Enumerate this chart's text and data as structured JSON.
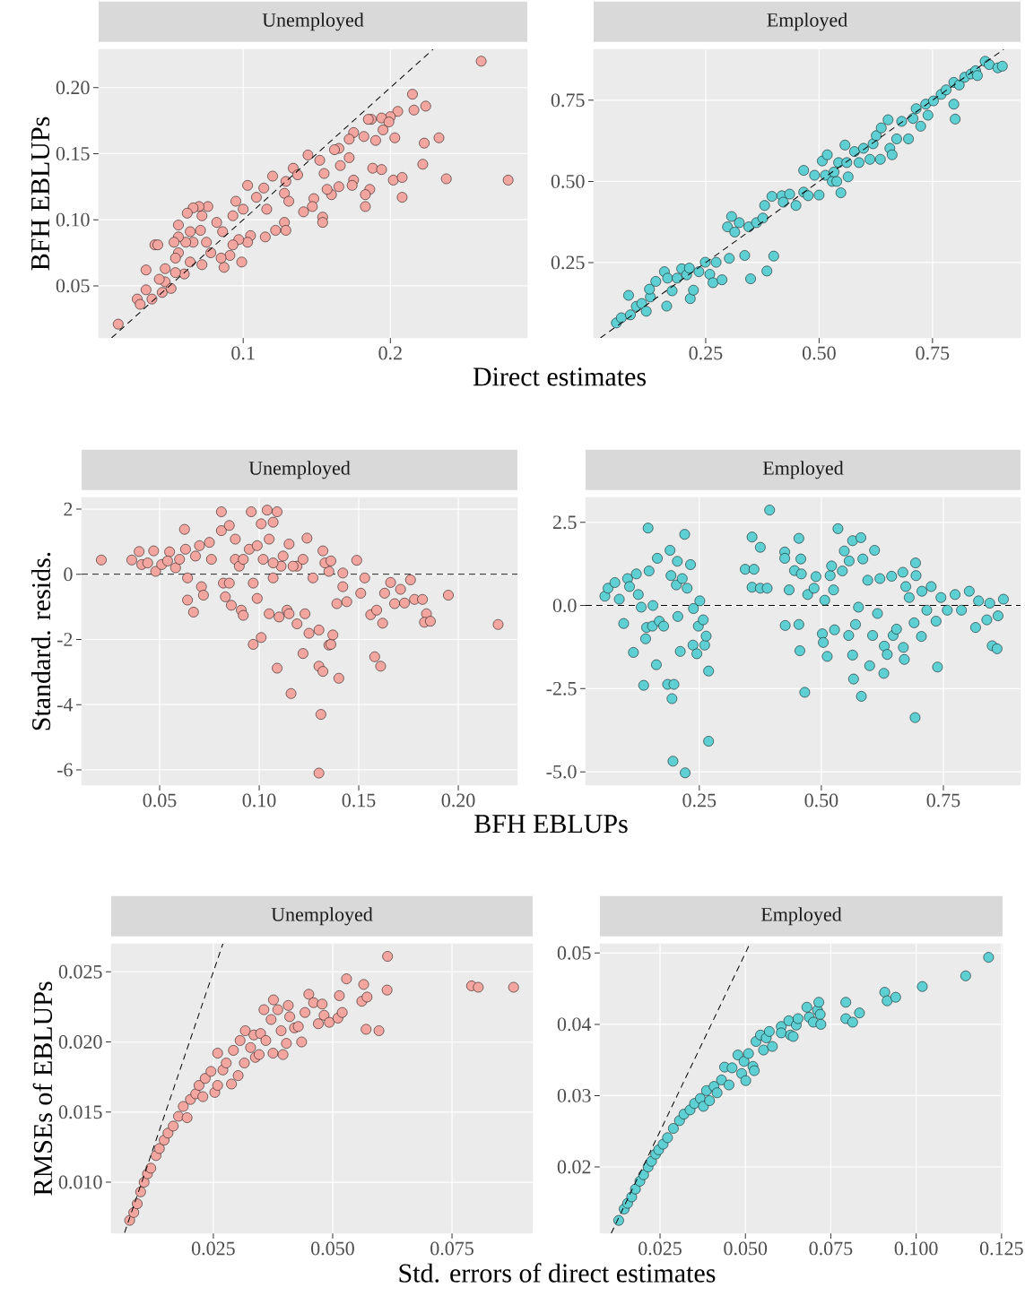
{
  "chart_data": [
    {
      "type": "scatter",
      "title": "Unemployed",
      "ylabel": "BFH EBLUPs",
      "xlabel": "Direct estimates",
      "xlim": [
        0.0018,
        0.293
      ],
      "ylim": [
        0.0106,
        0.229
      ],
      "xticks": [
        0.1,
        0.2
      ],
      "yticks": [
        0.05,
        {
          "value": 0.1,
          "label": "0.10"
        },
        0.15,
        {
          "value": 0.2,
          "label": "0.20"
        }
      ],
      "grid": true,
      "marker": "circle",
      "series": [
        {
          "color": "#f3a59f",
          "x": [
            0.0151,
            0.2617,
            0.28,
            0.215,
            0.224,
            0.216,
            0.233,
            0.223,
            0.222,
            0.238,
            0.205,
            0.2,
            0.194,
            0.187,
            0.185,
            0.199,
            0.195,
            0.203,
            0.19,
            0.182,
            0.175,
            0.172,
            0.172,
            0.165,
            0.162,
            0.166,
            0.188,
            0.194,
            0.202,
            0.208,
            0.208,
            0.186,
            0.183,
            0.183,
            0.175,
            0.174,
            0.165,
            0.16,
            0.157,
            0.155,
            0.152,
            0.144,
            0.154,
            0.154,
            0.148,
            0.147,
            0.141,
            0.134,
            0.137,
            0.129,
            0.128,
            0.131,
            0.128,
            0.129,
            0.122,
            0.115,
            0.12,
            0.114,
            0.109,
            0.116,
            0.103,
            0.1,
            0.095,
            0.093,
            0.105,
            0.103,
            0.097,
            0.099,
            0.093,
            0.091,
            0.087,
            0.085,
            0.086,
            0.082,
            0.076,
            0.07,
            0.066,
            0.062,
            0.072,
            0.071,
            0.064,
            0.066,
            0.061,
            0.075,
            0.078,
            0.072,
            0.064,
            0.056,
            0.056,
            0.053,
            0.056,
            0.054,
            0.06,
            0.054,
            0.047,
            0.047,
            0.043,
            0.045,
            0.04,
            0.042,
            0.034,
            0.034,
            0.038,
            0.028,
            0.03,
            0.051
          ],
          "values": [
            0.021,
            0.22,
            0.13,
            0.195,
            0.186,
            0.183,
            0.162,
            0.158,
            0.142,
            0.131,
            0.182,
            0.178,
            0.177,
            0.176,
            0.176,
            0.174,
            0.168,
            0.162,
            0.16,
            0.163,
            0.166,
            0.161,
            0.147,
            0.154,
            0.153,
            0.141,
            0.139,
            0.138,
            0.13,
            0.132,
            0.117,
            0.123,
            0.119,
            0.11,
            0.13,
            0.126,
            0.125,
            0.119,
            0.123,
            0.135,
            0.145,
            0.149,
            0.102,
            0.098,
            0.116,
            0.11,
            0.106,
            0.139,
            0.134,
            0.129,
            0.12,
            0.114,
            0.098,
            0.092,
            0.092,
            0.087,
            0.133,
            0.124,
            0.117,
            0.108,
            0.126,
            0.108,
            0.114,
            0.103,
            0.088,
            0.083,
            0.085,
            0.068,
            0.081,
            0.073,
            0.064,
            0.071,
            0.091,
            0.098,
            0.11,
            0.11,
            0.109,
            0.105,
            0.103,
            0.092,
            0.091,
            0.083,
            0.083,
            0.083,
            0.075,
            0.066,
            0.068,
            0.096,
            0.087,
            0.083,
            0.075,
            0.071,
            0.059,
            0.06,
            0.063,
            0.053,
            0.055,
            0.045,
            0.081,
            0.081,
            0.062,
            0.047,
            0.04,
            0.04,
            0.036,
            0.048
          ]
        },
        {
          "type": "line",
          "color": "#000000",
          "line_style": "dashed",
          "marker": "none",
          "x": [
            0.0106,
            0.229
          ],
          "values": [
            0.0106,
            0.229
          ]
        }
      ]
    },
    {
      "type": "scatter",
      "title": "Employed",
      "xlim": [
        0.003,
        0.944
      ],
      "ylim": [
        0.018,
        0.907
      ],
      "xticks": [
        0.25,
        {
          "value": 0.5,
          "label": "0.50"
        },
        0.75
      ],
      "yticks": [
        0.25,
        {
          "value": 0.5,
          "label": "0.50"
        },
        0.75
      ],
      "grid": true,
      "marker": "circle",
      "series": [
        {
          "color": "#5ecfd2",
          "x": [
            0.053,
            0.064,
            0.08,
            0.084,
            0.097,
            0.109,
            0.119,
            0.128,
            0.126,
            0.14,
            0.159,
            0.164,
            0.166,
            0.176,
            0.187,
            0.197,
            0.208,
            0.216,
            0.223,
            0.214,
            0.235,
            0.249,
            0.259,
            0.266,
            0.273,
            0.286,
            0.302,
            0.298,
            0.307,
            0.314,
            0.324,
            0.336,
            0.345,
            0.349,
            0.362,
            0.376,
            0.38,
            0.385,
            0.396,
            0.4,
            0.418,
            0.421,
            0.435,
            0.449,
            0.466,
            0.466,
            0.476,
            0.49,
            0.5,
            0.507,
            0.514,
            0.518,
            0.529,
            0.539,
            0.548,
            0.533,
            0.543,
            0.557,
            0.561,
            0.564,
            0.578,
            0.588,
            0.598,
            0.612,
            0.619,
            0.626,
            0.635,
            0.637,
            0.652,
            0.656,
            0.661,
            0.671,
            0.682,
            0.697,
            0.707,
            0.714,
            0.724,
            0.735,
            0.74,
            0.752,
            0.769,
            0.78,
            0.797,
            0.8,
            0.797,
            0.809,
            0.821,
            0.835,
            0.845,
            0.849,
            0.866,
            0.875,
            0.894,
            0.904
          ],
          "values": [
            0.064,
            0.08,
            0.149,
            0.089,
            0.115,
            0.124,
            0.1,
            0.144,
            0.168,
            0.192,
            0.222,
            0.116,
            0.202,
            0.163,
            0.202,
            0.231,
            0.212,
            0.139,
            0.165,
            0.233,
            0.222,
            0.251,
            0.214,
            0.188,
            0.251,
            0.197,
            0.263,
            0.36,
            0.392,
            0.344,
            0.373,
            0.272,
            0.36,
            0.2,
            0.373,
            0.387,
            0.426,
            0.224,
            0.454,
            0.27,
            0.456,
            0.436,
            0.461,
            0.426,
            0.534,
            0.467,
            0.456,
            0.519,
            0.458,
            0.563,
            0.519,
            0.582,
            0.5,
            0.5,
            0.465,
            0.529,
            0.558,
            0.612,
            0.558,
            0.514,
            0.592,
            0.558,
            0.602,
            0.568,
            0.616,
            0.641,
            0.568,
            0.665,
            0.69,
            0.602,
            0.582,
            0.631,
            0.685,
            0.631,
            0.694,
            0.724,
            0.67,
            0.738,
            0.704,
            0.748,
            0.768,
            0.782,
            0.738,
            0.692,
            0.805,
            0.797,
            0.821,
            0.831,
            0.841,
            0.826,
            0.87,
            0.86,
            0.85,
            0.855
          ]
        },
        {
          "type": "line",
          "color": "#000000",
          "line_style": "dashed",
          "marker": "none",
          "x": [
            0.018,
            0.907
          ],
          "values": [
            0.018,
            0.907
          ]
        }
      ]
    },
    {
      "type": "scatter",
      "title": "Unemployed",
      "ylabel": "Standard. resids.",
      "xlabel": "BFH EBLUPs",
      "xlim": [
        0.0108,
        0.2297
      ],
      "ylim": [
        -6.47,
        2.36
      ],
      "xticks": [
        0.05,
        {
          "value": 0.1,
          "label": "0.10"
        },
        0.15,
        {
          "value": 0.2,
          "label": "0.20"
        }
      ],
      "yticks": [
        -6,
        -4,
        -2,
        0,
        2
      ],
      "grid": true,
      "marker": "circle",
      "ref_lines": [
        {
          "axis": "y",
          "value": 0,
          "color": "#000000",
          "line_style": "dashed"
        }
      ],
      "series": [
        {
          "color": "#f3a59f",
          "x": [
            0.0207,
            0.036,
            0.0397,
            0.041,
            0.044,
            0.047,
            0.048,
            0.051,
            0.055,
            0.054,
            0.058,
            0.06,
            0.0625,
            0.063,
            0.064,
            0.064,
            0.067,
            0.068,
            0.07,
            0.071,
            0.072,
            0.075,
            0.076,
            0.081,
            0.081,
            0.082,
            0.083,
            0.085,
            0.085,
            0.086,
            0.088,
            0.088,
            0.09,
            0.091,
            0.092,
            0.095,
            0.096,
            0.097,
            0.097,
            0.099,
            0.099,
            0.101,
            0.101,
            0.104,
            0.105,
            0.105,
            0.107,
            0.107,
            0.109,
            0.109,
            0.11,
            0.111,
            0.112,
            0.114,
            0.115,
            0.115,
            0.116,
            0.119,
            0.119,
            0.122,
            0.123,
            0.124,
            0.125,
            0.127,
            0.13,
            0.13,
            0.13,
            0.131,
            0.132,
            0.132,
            0.135,
            0.135,
            0.136,
            0.137,
            0.14,
            0.139,
            0.142,
            0.144,
            0.149,
            0.151,
            0.153,
            0.156,
            0.158,
            0.159,
            0.161,
            0.162,
            0.163,
            0.166,
            0.168,
            0.171,
            0.173,
            0.176,
            0.178,
            0.182,
            0.184,
            0.183,
            0.186,
            0.195,
            0.22,
            0.092,
            0.102,
            0.107,
            0.117,
            0.122,
            0.133,
            0.136,
            0.142
          ],
          "values": [
            0.44,
            0.44,
            0.7,
            0.3,
            0.35,
            0.72,
            0.09,
            0.3,
            0.69,
            0.41,
            0.2,
            0.46,
            1.38,
            0.77,
            -0.11,
            -0.79,
            -1.16,
            0.56,
            0.88,
            -0.38,
            -0.64,
            0.98,
            0.46,
            1.34,
            1.92,
            -0.27,
            -0.69,
            1.5,
            -0.27,
            -0.95,
            1.08,
            0.46,
            0.25,
            -1.1,
            -1.26,
            0.77,
            1.92,
            -0.27,
            -2.15,
            0.88,
            -0.74,
            -1.94,
            1.55,
            1.97,
            -1.21,
            1.08,
            -0.11,
            1.6,
            1.92,
            -2.88,
            -1.31,
            0.25,
            0.56,
            -1.1,
            0.93,
            -1.21,
            -3.66,
            -1.52,
            0.25,
            -2.43,
            -1.21,
            1.11,
            -1.81,
            -0.11,
            -1.71,
            -2.82,
            -6.1,
            -4.3,
            -2.98,
            0.72,
            -2.17,
            0.09,
            -2.15,
            -1.86,
            -3.19,
            -0.9,
            -0.38,
            -0.84,
            0.43,
            -0.58,
            -0.11,
            -1.24,
            -2.53,
            -1.1,
            -2.82,
            -1.5,
            -0.58,
            -0.25,
            -0.9,
            -0.46,
            -0.88,
            -0.17,
            -0.77,
            -0.77,
            -1.21,
            -1.47,
            -1.44,
            -0.64,
            -1.54,
            0.46,
            0.46,
            0.35,
            0.25,
            0.46,
            0.35,
            0.41,
            0.04
          ]
        }
      ]
    },
    {
      "type": "scatter",
      "title": "Employed",
      "xlim": [
        0.017,
        0.908
      ],
      "ylim": [
        -5.4,
        3.25
      ],
      "xticks": [
        0.25,
        {
          "value": 0.5,
          "label": "0.50"
        },
        0.75
      ],
      "yticks": [
        {
          "value": -5,
          "label": "-5.0"
        },
        -2.5,
        {
          "value": 0,
          "label": "0.0"
        },
        2.5
      ],
      "grid": true,
      "marker": "circle",
      "ref_lines": [
        {
          "axis": "y",
          "value": 0,
          "color": "#000000",
          "line_style": "dashed"
        }
      ],
      "series": [
        {
          "color": "#5ecfd2",
          "x": [
            0.0565,
            0.063,
            0.077,
            0.086,
            0.095,
            0.103,
            0.107,
            0.115,
            0.121,
            0.125,
            0.131,
            0.136,
            0.14,
            0.142,
            0.145,
            0.147,
            0.154,
            0.155,
            0.162,
            0.164,
            0.168,
            0.177,
            0.185,
            0.19,
            0.192,
            0.194,
            0.196,
            0.198,
            0.203,
            0.205,
            0.206,
            0.211,
            0.215,
            0.22,
            0.221,
            0.225,
            0.232,
            0.237,
            0.238,
            0.245,
            0.251,
            0.248,
            0.258,
            0.261,
            0.264,
            0.269,
            0.269,
            0.344,
            0.358,
            0.358,
            0.362,
            0.375,
            0.375,
            0.389,
            0.394,
            0.425,
            0.426,
            0.425,
            0.434,
            0.445,
            0.454,
            0.454,
            0.456,
            0.458,
            0.459,
            0.466,
            0.472,
            0.485,
            0.489,
            0.502,
            0.504,
            0.507,
            0.512,
            0.518,
            0.521,
            0.525,
            0.527,
            0.534,
            0.543,
            0.547,
            0.556,
            0.557,
            0.564,
            0.564,
            0.566,
            0.57,
            0.576,
            0.581,
            0.582,
            0.585,
            0.595,
            0.599,
            0.605,
            0.609,
            0.615,
            0.62,
            0.628,
            0.629,
            0.635,
            0.644,
            0.647,
            0.654,
            0.667,
            0.668,
            0.67,
            0.673,
            0.68,
            0.69,
            0.692,
            0.693,
            0.694,
            0.705,
            0.706,
            0.716,
            0.725,
            0.735,
            0.738,
            0.745,
            0.758,
            0.774,
            0.787,
            0.803,
            0.816,
            0.822,
            0.839,
            0.845,
            0.85,
            0.86,
            0.862,
            0.873
          ],
          "values": [
            0.28,
            0.52,
            0.69,
            0.19,
            -0.54,
            0.81,
            0.57,
            -1.41,
            0.95,
            0.33,
            -0.05,
            -2.4,
            -1.0,
            -0.66,
            2.33,
            1.04,
            -0.62,
            0.0,
            -1.78,
            1.42,
            -0.47,
            -0.62,
            -2.37,
            1.66,
            0.9,
            -2.8,
            -4.68,
            -2.37,
            0.62,
            1.33,
            -0.33,
            -1.38,
            0.81,
            2.14,
            -5.03,
            0.52,
            1.23,
            -1.19,
            -0.09,
            -1.45,
            0.14,
            -0.62,
            -0.43,
            -1.19,
            -0.92,
            -1.97,
            -4.08,
            1.09,
            2.06,
            0.55,
            1.09,
            1.75,
            0.52,
            0.52,
            2.87,
            1.61,
            -0.6,
            1.42,
            0.47,
            1.05,
            2.02,
            -0.57,
            -1.36,
            1.4,
            0.95,
            -2.61,
            0.33,
            0.52,
            0.87,
            -0.85,
            -1.11,
            0.16,
            -1.53,
            0.9,
            1.19,
            0.47,
            -0.73,
            2.31,
            1.04,
            1.64,
            -0.9,
            1.34,
            -1.49,
            1.95,
            -2.21,
            -0.57,
            -0.05,
            2.04,
            -2.73,
            1.4,
            0.76,
            -1.81,
            -0.9,
            1.66,
            -0.24,
            0.81,
            -2.04,
            -1.22,
            -1.47,
            0.88,
            -0.9,
            -0.71,
            1.0,
            -1.26,
            -1.62,
            0.57,
            0.24,
            -0.52,
            -3.37,
            1.28,
            0.9,
            -0.93,
            0.43,
            -0.14,
            0.57,
            -0.47,
            -1.85,
            0.24,
            -0.14,
            0.33,
            -0.14,
            0.43,
            -0.66,
            0.14,
            -0.43,
            0.07,
            -1.21,
            -1.3,
            -0.31,
            0.19
          ]
        }
      ]
    },
    {
      "type": "scatter",
      "title": "Unemployed",
      "ylabel": "RMSEs of EBLUPs",
      "xlabel": "Std. errors of direct estimates",
      "xlim": [
        0.0036,
        0.0919
      ],
      "ylim": [
        0.00636,
        0.027
      ],
      "xticks": [
        0.025,
        {
          "value": 0.05,
          "label": "0.050"
        },
        0.075
      ],
      "yticks": [
        {
          "value": 0.01,
          "label": "0.010"
        },
        0.015,
        {
          "value": 0.02,
          "label": "0.020"
        },
        0.025
      ],
      "grid": true,
      "marker": "circle",
      "series": [
        {
          "color": "#f3a59f",
          "x": [
            0.00747,
            0.00833,
            0.00905,
            0.00977,
            0.0105,
            0.0112,
            0.0119,
            0.013,
            0.0137,
            0.0147,
            0.0155,
            0.0166,
            0.0177,
            0.0187,
            0.0195,
            0.0202,
            0.0213,
            0.022,
            0.0228,
            0.0233,
            0.0245,
            0.0253,
            0.0259,
            0.0259,
            0.027,
            0.0277,
            0.0288,
            0.0292,
            0.0302,
            0.0306,
            0.0315,
            0.0317,
            0.0328,
            0.0335,
            0.0338,
            0.0346,
            0.0349,
            0.0356,
            0.036,
            0.0371,
            0.0375,
            0.0376,
            0.0385,
            0.0392,
            0.0396,
            0.0403,
            0.0407,
            0.041,
            0.042,
            0.0428,
            0.0435,
            0.0442,
            0.045,
            0.046,
            0.047,
            0.0478,
            0.0482,
            0.0493,
            0.0511,
            0.0514,
            0.052,
            0.0529,
            0.0561,
            0.0565,
            0.0572,
            0.057,
            0.0597,
            0.0614,
            0.0615,
            0.0791,
            0.0805,
            0.0879
          ],
          "values": [
            0.00728,
            0.00784,
            0.00846,
            0.00931,
            0.01,
            0.0106,
            0.011,
            0.0119,
            0.0124,
            0.013,
            0.0135,
            0.014,
            0.0147,
            0.0154,
            0.0146,
            0.0159,
            0.0163,
            0.0169,
            0.0161,
            0.0174,
            0.0179,
            0.0164,
            0.0169,
            0.0192,
            0.018,
            0.0185,
            0.017,
            0.0194,
            0.0176,
            0.0201,
            0.0185,
            0.0208,
            0.0196,
            0.0205,
            0.0189,
            0.0191,
            0.0206,
            0.0223,
            0.0201,
            0.0216,
            0.0192,
            0.023,
            0.0223,
            0.0208,
            0.0191,
            0.0199,
            0.0226,
            0.0218,
            0.021,
            0.0211,
            0.02,
            0.0221,
            0.0234,
            0.0228,
            0.0213,
            0.0227,
            0.0219,
            0.0214,
            0.0217,
            0.0233,
            0.0221,
            0.0245,
            0.0229,
            0.0241,
            0.0232,
            0.0209,
            0.0208,
            0.0237,
            0.0261,
            0.024,
            0.0239,
            0.0239
          ]
        },
        {
          "type": "line",
          "color": "#000000",
          "line_style": "dashed",
          "marker": "none",
          "x": [
            0.0064,
            0.027
          ],
          "values": [
            0.0064,
            0.027
          ]
        }
      ]
    },
    {
      "type": "scatter",
      "title": "Employed",
      "xlim": [
        0.0074,
        0.1253
      ],
      "ylim": [
        0.0107,
        0.0513
      ],
      "xticks": [
        0.025,
        {
          "value": 0.05,
          "label": "0.050"
        },
        0.075,
        {
          "value": 0.1,
          "label": "0.100"
        },
        0.125
      ],
      "yticks": [
        0.02,
        0.03,
        0.04,
        0.05
      ],
      "grid": true,
      "marker": "circle",
      "series": [
        {
          "color": "#5ecfd2",
          "x": [
            0.0129,
            0.0145,
            0.0155,
            0.0167,
            0.0178,
            0.0191,
            0.0202,
            0.0215,
            0.0225,
            0.0237,
            0.0246,
            0.0259,
            0.0272,
            0.0289,
            0.0307,
            0.032,
            0.0338,
            0.0351,
            0.0368,
            0.0377,
            0.0386,
            0.0395,
            0.0408,
            0.0417,
            0.043,
            0.0439,
            0.0452,
            0.0461,
            0.0478,
            0.0489,
            0.0496,
            0.0501,
            0.0509,
            0.0522,
            0.0526,
            0.0531,
            0.0544,
            0.0553,
            0.0561,
            0.057,
            0.0579,
            0.0605,
            0.0605,
            0.0627,
            0.0632,
            0.064,
            0.0649,
            0.0654,
            0.068,
            0.0687,
            0.0699,
            0.0711,
            0.0715,
            0.0719,
            0.0721,
            0.0794,
            0.0794,
            0.0814,
            0.0834,
            0.0908,
            0.0915,
            0.094,
            0.1018,
            0.1145,
            0.1212
          ],
          "values": [
            0.0125,
            0.0141,
            0.0149,
            0.0158,
            0.0169,
            0.018,
            0.0189,
            0.02,
            0.0208,
            0.0218,
            0.0224,
            0.0232,
            0.0241,
            0.0254,
            0.0265,
            0.0274,
            0.028,
            0.0289,
            0.0296,
            0.0285,
            0.0307,
            0.0293,
            0.0313,
            0.0304,
            0.0322,
            0.034,
            0.0315,
            0.0339,
            0.0357,
            0.0331,
            0.0348,
            0.0321,
            0.0359,
            0.0341,
            0.0335,
            0.0376,
            0.0385,
            0.0364,
            0.0381,
            0.039,
            0.0369,
            0.0397,
            0.0388,
            0.0405,
            0.0385,
            0.0383,
            0.0399,
            0.0408,
            0.0424,
            0.041,
            0.0403,
            0.042,
            0.0431,
            0.0414,
            0.04,
            0.0431,
            0.0408,
            0.0403,
            0.0416,
            0.0445,
            0.0433,
            0.0438,
            0.0453,
            0.0468,
            0.0494
          ]
        },
        {
          "type": "line",
          "color": "#000000",
          "line_style": "dashed",
          "marker": "none",
          "x": [
            0.0107,
            0.0513
          ],
          "values": [
            0.0107,
            0.0513
          ]
        }
      ]
    }
  ]
}
